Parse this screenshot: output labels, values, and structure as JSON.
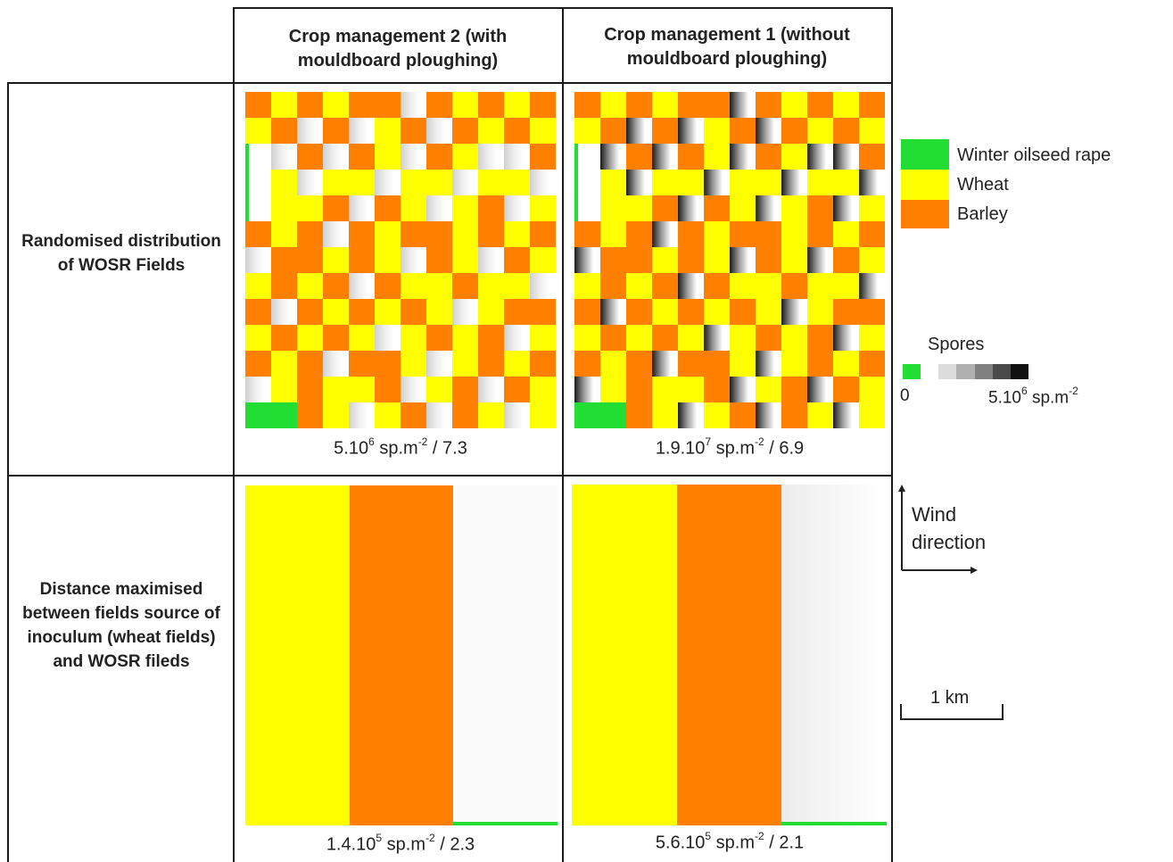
{
  "columns": [
    {
      "label": "Crop management 2 (with mouldboard ploughing)"
    },
    {
      "label": "Crop management 1 (without mouldboard ploughing)"
    }
  ],
  "rows": [
    {
      "label": "Randomised distribution of WOSR Fields"
    },
    {
      "label": "Distance maximised between fields source of inoculum (wheat fields) and WOSR fileds"
    }
  ],
  "captions": {
    "r1c1": {
      "value": "5.10",
      "exp": "6",
      "unit": " sp.m",
      "unit_exp": "-2",
      "ratio": " / 7.3"
    },
    "r1c2": {
      "value": "1.9.10",
      "exp": "7",
      "unit": " sp.m",
      "unit_exp": "-2",
      "ratio": " / 6.9"
    },
    "r2c1": {
      "value": "1.4.10",
      "exp": "5",
      "unit": " sp.m",
      "unit_exp": "-2",
      "ratio": " / 2.3"
    },
    "r2c2": {
      "value": "5.6.10",
      "exp": "5",
      "unit": " sp.m",
      "unit_exp": "-2",
      "ratio": " / 2.1"
    }
  },
  "legend": {
    "items": [
      {
        "label": "Winter oilseed rape",
        "color": "#22dd33"
      },
      {
        "label": "Wheat",
        "color": "#ffff00"
      },
      {
        "label": "Barley",
        "color": "#ff7f00"
      }
    ],
    "spores": {
      "title": "Spores",
      "min": "0",
      "max_value": "5.10",
      "max_exp": "6",
      "max_unit": " sp.m",
      "max_unit_exp": "-2",
      "stops": [
        "#22dd33",
        "#ffffff",
        "#dcdcdc",
        "#b0b0b0",
        "#808080",
        "#4a4a4a",
        "#111111"
      ]
    }
  },
  "wind": {
    "label": "Wind direction"
  },
  "scale": {
    "label": "1 km"
  },
  "colors": {
    "wosr": "#22dd33",
    "wheat": "#ffff00",
    "barley": "#ff7f00",
    "bare": "#ffffff"
  },
  "maps": {
    "random": {
      "rows": [
        "BWBWBBBBWBWB",
        "WBWBWWBWBWBW",
        "GWBWBWWBWBWB",
        "GWBWWBWWBWWB",
        "GWWBWBWBWBWW",
        "BWBWBWBBWBWB",
        "WBBWBWWBWBBW",
        "WBWBWBWWBWWB",
        "BWBWBWBWBWBB",
        "WBWBWBWBWBWW",
        "BWBWBBWBWBWB",
        "WWBWWBWWBWBW",
        "GGBWBWBWBWBW"
      ],
      "bare": [
        [
          0,
          6
        ],
        [
          1,
          2
        ],
        [
          1,
          4
        ],
        [
          1,
          7
        ],
        [
          2,
          1
        ],
        [
          2,
          3
        ],
        [
          2,
          6
        ],
        [
          2,
          9
        ],
        [
          2,
          10
        ],
        [
          3,
          2
        ],
        [
          3,
          5
        ],
        [
          3,
          8
        ],
        [
          3,
          11
        ],
        [
          4,
          4
        ],
        [
          4,
          7
        ],
        [
          4,
          10
        ],
        [
          5,
          3
        ],
        [
          6,
          0
        ],
        [
          6,
          6
        ],
        [
          6,
          9
        ],
        [
          7,
          4
        ],
        [
          7,
          11
        ],
        [
          8,
          1
        ],
        [
          8,
          8
        ],
        [
          9,
          5
        ],
        [
          9,
          10
        ],
        [
          10,
          3
        ],
        [
          10,
          7
        ],
        [
          11,
          0
        ],
        [
          11,
          6
        ],
        [
          11,
          9
        ],
        [
          12,
          4
        ],
        [
          12,
          7
        ],
        [
          12,
          10
        ]
      ]
    },
    "distance": {
      "bands": [
        {
          "start": 0,
          "end": 0.333,
          "crop": "wheat"
        },
        {
          "start": 0.333,
          "end": 0.667,
          "crop": "barley"
        },
        {
          "start": 0.667,
          "end": 1.0,
          "crop": "bare"
        }
      ],
      "wosr_strip": {
        "start": 0.667,
        "end": 1.0
      }
    }
  }
}
